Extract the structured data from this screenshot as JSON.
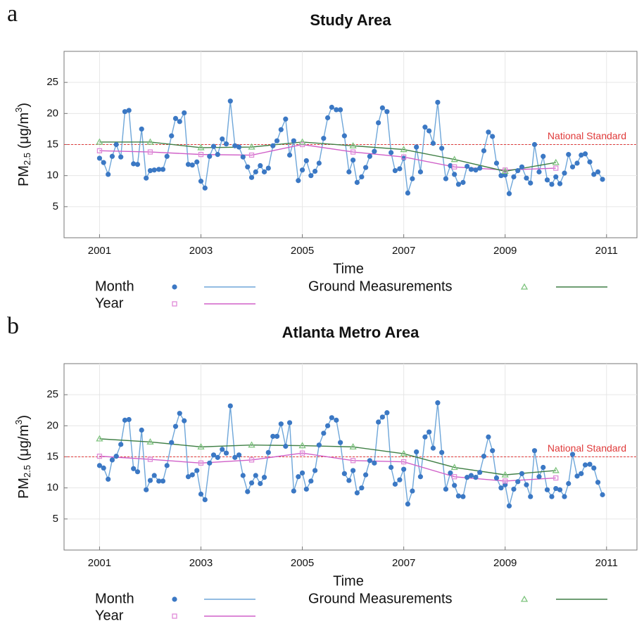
{
  "chart_data": [
    {
      "type": "line",
      "panel_label": "a",
      "title": "Study Area",
      "xlabel": "Time",
      "ylabel": {
        "base": "PM",
        "sub": "2.5",
        "mid": " (μg/m",
        "sup": "3",
        "end": ")"
      },
      "xlim": [
        2000.3,
        2011.6
      ],
      "ylim": [
        0,
        30
      ],
      "xticks": [
        2001,
        2003,
        2005,
        2007,
        2009,
        2011
      ],
      "yticks": [
        5,
        10,
        15,
        20,
        25
      ],
      "grid": true,
      "reference_line": {
        "value": 15,
        "label": "National Standard",
        "color": "#e03a3a"
      },
      "series": [
        {
          "name": "Month",
          "color": "#3b78c4",
          "line_color": "#6ea6d9",
          "marker": "circle",
          "x": [
            2001,
            2001.08,
            2001.17,
            2001.25,
            2001.33,
            2001.42,
            2001.5,
            2001.58,
            2001.67,
            2001.75,
            2001.83,
            2001.92,
            2002,
            2002.08,
            2002.17,
            2002.25,
            2002.33,
            2002.42,
            2002.5,
            2002.58,
            2002.67,
            2002.75,
            2002.83,
            2002.92,
            2003,
            2003.08,
            2003.17,
            2003.25,
            2003.33,
            2003.42,
            2003.5,
            2003.58,
            2003.67,
            2003.75,
            2003.83,
            2003.92,
            2004,
            2004.08,
            2004.17,
            2004.25,
            2004.33,
            2004.42,
            2004.5,
            2004.58,
            2004.67,
            2004.75,
            2004.83,
            2004.92,
            2005,
            2005.08,
            2005.17,
            2005.25,
            2005.33,
            2005.42,
            2005.5,
            2005.58,
            2005.67,
            2005.75,
            2005.83,
            2005.92,
            2006,
            2006.08,
            2006.17,
            2006.25,
            2006.33,
            2006.42,
            2006.5,
            2006.58,
            2006.67,
            2006.75,
            2006.83,
            2006.92,
            2007,
            2007.08,
            2007.17,
            2007.25,
            2007.33,
            2007.42,
            2007.5,
            2007.58,
            2007.67,
            2007.75,
            2007.83,
            2007.92,
            2008,
            2008.08,
            2008.17,
            2008.25,
            2008.33,
            2008.42,
            2008.5,
            2008.58,
            2008.67,
            2008.75,
            2008.83,
            2008.92,
            2009,
            2009.08,
            2009.17,
            2009.25,
            2009.33,
            2009.42,
            2009.5,
            2009.58,
            2009.67,
            2009.75,
            2009.83,
            2009.92,
            2010,
            2010.08,
            2010.17,
            2010.25,
            2010.33,
            2010.42,
            2010.5,
            2010.58,
            2010.67,
            2010.75,
            2010.83,
            2010.92
          ],
          "values": [
            12.8,
            12.1,
            10.2,
            13.1,
            15.0,
            13.0,
            20.3,
            20.5,
            11.9,
            11.8,
            17.5,
            9.6,
            10.8,
            10.9,
            11.0,
            11.0,
            13.1,
            16.4,
            19.2,
            18.7,
            20.1,
            11.8,
            11.7,
            12.2,
            9.1,
            8.0,
            13.1,
            14.7,
            13.4,
            15.9,
            15.1,
            22.0,
            14.8,
            14.6,
            13.0,
            11.4,
            9.7,
            10.6,
            11.6,
            10.6,
            11.2,
            14.8,
            15.6,
            17.4,
            19.1,
            13.3,
            15.6,
            9.2,
            10.9,
            12.4,
            10.0,
            10.7,
            12.0,
            16.0,
            19.3,
            21.0,
            20.6,
            20.6,
            16.4,
            10.6,
            12.5,
            8.9,
            9.8,
            11.3,
            13.1,
            13.9,
            18.5,
            20.9,
            20.3,
            13.7,
            10.8,
            11.1,
            12.8,
            7.2,
            9.5,
            14.6,
            10.6,
            17.8,
            17.2,
            15.2,
            21.8,
            14.4,
            9.5,
            11.6,
            10.2,
            8.6,
            8.9,
            11.5,
            11.0,
            10.9,
            11.2,
            14.0,
            17.0,
            16.3,
            12.0,
            10.0,
            10.1,
            7.1,
            9.8,
            10.8,
            11.4,
            9.6,
            8.8,
            15.0,
            10.6,
            13.1,
            9.3,
            8.6,
            9.8,
            8.7,
            10.4,
            13.4,
            11.4,
            12.0,
            13.3,
            13.5,
            12.2,
            10.2,
            10.6,
            9.4
          ]
        },
        {
          "name": "Year",
          "color": "#e08ad8",
          "line_color": "#d060c8",
          "marker": "square",
          "x": [
            2001,
            2002,
            2003,
            2004,
            2005,
            2006,
            2007,
            2008,
            2009,
            2010
          ],
          "values": [
            14.0,
            13.8,
            13.4,
            13.3,
            15.0,
            13.8,
            13.0,
            11.4,
            10.9,
            11.2
          ]
        },
        {
          "name": "Ground Measurements",
          "color": "#7fc47f",
          "line_color": "#3f7f45",
          "marker": "triangle",
          "x": [
            2001,
            2002,
            2003,
            2004,
            2005,
            2006,
            2007,
            2008,
            2009,
            2010
          ],
          "values": [
            15.4,
            15.4,
            14.5,
            14.6,
            15.4,
            14.8,
            14.2,
            12.6,
            10.7,
            12.1
          ]
        }
      ]
    },
    {
      "type": "line",
      "panel_label": "b",
      "title": "Atlanta Metro Area",
      "xlabel": "Time",
      "ylabel": {
        "base": "PM",
        "sub": "2.5",
        "mid": " (μg/m",
        "sup": "3",
        "end": ")"
      },
      "xlim": [
        2000.3,
        2011.6
      ],
      "ylim": [
        0,
        30
      ],
      "xticks": [
        2001,
        2003,
        2005,
        2007,
        2009,
        2011
      ],
      "yticks": [
        5,
        10,
        15,
        20,
        25
      ],
      "grid": true,
      "reference_line": {
        "value": 15,
        "label": "National Standard",
        "color": "#e03a3a"
      },
      "series": [
        {
          "name": "Month",
          "color": "#3b78c4",
          "line_color": "#6ea6d9",
          "marker": "circle",
          "x": [
            2001,
            2001.08,
            2001.17,
            2001.25,
            2001.33,
            2001.42,
            2001.5,
            2001.58,
            2001.67,
            2001.75,
            2001.83,
            2001.92,
            2002,
            2002.08,
            2002.17,
            2002.25,
            2002.33,
            2002.42,
            2002.5,
            2002.58,
            2002.67,
            2002.75,
            2002.83,
            2002.92,
            2003,
            2003.08,
            2003.17,
            2003.25,
            2003.33,
            2003.42,
            2003.5,
            2003.58,
            2003.67,
            2003.75,
            2003.83,
            2003.92,
            2004,
            2004.08,
            2004.17,
            2004.25,
            2004.33,
            2004.42,
            2004.5,
            2004.58,
            2004.67,
            2004.75,
            2004.83,
            2004.92,
            2005,
            2005.08,
            2005.17,
            2005.25,
            2005.33,
            2005.42,
            2005.5,
            2005.58,
            2005.67,
            2005.75,
            2005.83,
            2005.92,
            2006,
            2006.08,
            2006.17,
            2006.25,
            2006.33,
            2006.42,
            2006.5,
            2006.58,
            2006.67,
            2006.75,
            2006.83,
            2006.92,
            2007,
            2007.08,
            2007.17,
            2007.25,
            2007.33,
            2007.42,
            2007.5,
            2007.58,
            2007.67,
            2007.75,
            2007.83,
            2007.92,
            2008,
            2008.08,
            2008.17,
            2008.25,
            2008.33,
            2008.42,
            2008.5,
            2008.58,
            2008.67,
            2008.75,
            2008.83,
            2008.92,
            2009,
            2009.08,
            2009.17,
            2009.25,
            2009.33,
            2009.42,
            2009.5,
            2009.58,
            2009.67,
            2009.75,
            2009.83,
            2009.92,
            2010,
            2010.08,
            2010.17,
            2010.25,
            2010.33,
            2010.42,
            2010.5,
            2010.58,
            2010.67,
            2010.75,
            2010.83,
            2010.92
          ],
          "values": [
            13.6,
            13.2,
            11.4,
            14.5,
            15.1,
            17.0,
            20.9,
            21.0,
            13.1,
            12.6,
            19.3,
            9.7,
            11.2,
            12.0,
            11.1,
            11.1,
            13.6,
            17.3,
            19.9,
            22.0,
            20.8,
            11.8,
            12.1,
            12.8,
            9.0,
            8.1,
            14.0,
            15.3,
            14.9,
            16.2,
            15.6,
            23.2,
            14.9,
            15.3,
            12.0,
            9.4,
            10.8,
            12.0,
            10.7,
            11.7,
            15.7,
            18.3,
            18.3,
            20.3,
            16.7,
            20.5,
            9.5,
            11.8,
            12.4,
            9.8,
            11.1,
            12.8,
            16.9,
            18.8,
            20.0,
            21.3,
            20.9,
            17.3,
            12.3,
            11.2,
            12.8,
            9.2,
            10.0,
            12.1,
            14.4,
            14.0,
            20.6,
            21.4,
            22.1,
            13.3,
            10.6,
            11.3,
            13.0,
            7.4,
            9.5,
            15.8,
            11.8,
            18.2,
            19.0,
            16.4,
            23.7,
            15.7,
            9.8,
            12.4,
            10.4,
            8.7,
            8.6,
            11.7,
            12.0,
            11.7,
            12.5,
            15.1,
            18.2,
            16.0,
            11.6,
            10.0,
            10.5,
            7.1,
            9.8,
            11.0,
            12.3,
            10.5,
            8.6,
            16.0,
            11.8,
            13.3,
            9.7,
            8.6,
            9.9,
            9.7,
            8.6,
            10.7,
            15.4,
            11.9,
            12.3,
            13.7,
            13.8,
            13.2,
            10.9,
            8.9
          ]
        },
        {
          "name": "Year",
          "color": "#e08ad8",
          "line_color": "#d060c8",
          "marker": "square",
          "x": [
            2001,
            2002,
            2003,
            2004,
            2005,
            2006,
            2007,
            2008,
            2009,
            2010
          ],
          "values": [
            15.1,
            14.6,
            14.0,
            14.5,
            15.6,
            14.4,
            14.2,
            11.8,
            11.1,
            11.6
          ]
        },
        {
          "name": "Ground Measurements",
          "color": "#7fc47f",
          "line_color": "#3f7f45",
          "marker": "triangle",
          "x": [
            2001,
            2002,
            2003,
            2004,
            2005,
            2006,
            2007,
            2008,
            2009,
            2010
          ],
          "values": [
            17.9,
            17.4,
            16.6,
            16.9,
            16.8,
            16.6,
            15.5,
            13.3,
            12.1,
            12.8
          ]
        }
      ]
    }
  ]
}
